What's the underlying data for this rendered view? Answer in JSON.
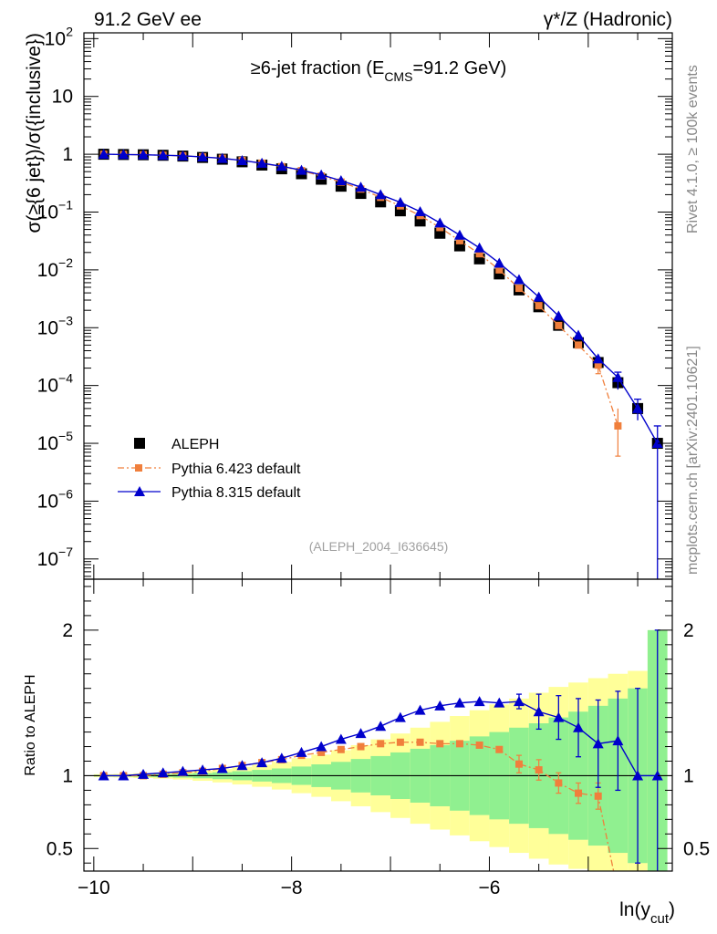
{
  "header": {
    "left": "91.2 GeV ee",
    "right": "γ*/Z (Hadronic)"
  },
  "side_labels": {
    "rivet": "Rivet 4.1.0, ≥ 100k events",
    "mcplots": "mcplots.cern.ch [arXiv:2401.10621]"
  },
  "analysis_id": "(ALEPH_2004_I636645)",
  "chart_data": {
    "type": "scatter",
    "title": "≥6-jet fraction (E_CMS=91.2 GeV)",
    "title_main": "≥6-jet fraction (E",
    "title_sub": "CMS",
    "title_tail": "=91.2 GeV)",
    "ylabel": "σ(≥{6 jet})/σ({inclusive})",
    "ratio_ylabel": "Ratio to ALEPH",
    "xlabel_main": "ln(y",
    "xlabel_sub": "cut",
    "xlabel_tail": ")",
    "xlim": [
      -10.1,
      -4.15
    ],
    "ylim_log10": [
      -7.35,
      2.1
    ],
    "ratio_ylim": [
      0.345,
      2.35
    ],
    "x_ticks": [
      -10,
      -8,
      -6
    ],
    "x_tick_labels": [
      "−10",
      "−8",
      "−6"
    ],
    "y_ticks_log10": [
      -7,
      -6,
      -5,
      -4,
      -3,
      -2,
      -1,
      0,
      1,
      2
    ],
    "y_tick_labels": [
      {
        "base": "10",
        "exp": "−7"
      },
      {
        "base": "10",
        "exp": "−6"
      },
      {
        "base": "10",
        "exp": "−5"
      },
      {
        "base": "10",
        "exp": "−4"
      },
      {
        "base": "10",
        "exp": "−3"
      },
      {
        "base": "10",
        "exp": "−2"
      },
      {
        "base": "10",
        "exp": "−1"
      },
      {
        "base": "1",
        "exp": ""
      },
      {
        "base": "10",
        "exp": ""
      },
      {
        "base": "10",
        "exp": "2"
      }
    ],
    "ratio_ticks": [
      0.5,
      1,
      2
    ],
    "ratio_tick_labels": [
      "0.5",
      "1",
      "2"
    ],
    "legend_position": "bottom-left",
    "legend": [
      "ALEPH",
      "Pythia 6.423 default",
      "Pythia 8.315 default"
    ],
    "colors": {
      "data": "#000000",
      "py6": "#f07f3c",
      "py8": "#0000cc",
      "band_inner": "#90f090",
      "band_outer": "#ffff99"
    },
    "x": [
      -9.9,
      -9.7,
      -9.5,
      -9.3,
      -9.1,
      -8.9,
      -8.7,
      -8.5,
      -8.3,
      -8.1,
      -7.9,
      -7.7,
      -7.5,
      -7.3,
      -7.1,
      -6.9,
      -6.7,
      -6.5,
      -6.3,
      -6.1,
      -5.9,
      -5.7,
      -5.5,
      -5.3,
      -5.1,
      -4.9,
      -4.7,
      -4.5,
      -4.3
    ],
    "series": [
      {
        "name": "ALEPH",
        "values": [
          1.0,
          0.99,
          0.98,
          0.96,
          0.93,
          0.88,
          0.82,
          0.74,
          0.65,
          0.56,
          0.46,
          0.37,
          0.28,
          0.21,
          0.15,
          0.105,
          0.07,
          0.043,
          0.026,
          0.0155,
          0.0085,
          0.0045,
          0.0023,
          0.0011,
          0.00055,
          0.00025,
          0.000112,
          4e-05,
          1e-05
        ]
      },
      {
        "name": "Pythia 6.423 default",
        "values": [
          1.0,
          0.99,
          0.98,
          0.96,
          0.94,
          0.9,
          0.85,
          0.78,
          0.7,
          0.61,
          0.52,
          0.42,
          0.33,
          0.25,
          0.18,
          0.128,
          0.087,
          0.054,
          0.032,
          0.019,
          0.01,
          0.0048,
          0.0024,
          0.00109,
          0.0005,
          0.000225,
          2e-05
        ]
      },
      {
        "name": "Pythia 8.315 default",
        "values": [
          1.0,
          0.99,
          0.98,
          0.96,
          0.94,
          0.9,
          0.85,
          0.78,
          0.7,
          0.62,
          0.53,
          0.44,
          0.35,
          0.27,
          0.2,
          0.147,
          0.102,
          0.065,
          0.04,
          0.024,
          0.0131,
          0.0068,
          0.0034,
          0.0016,
          0.00074,
          0.00029,
          0.000138,
          4e-05,
          1e-05
        ]
      }
    ],
    "ratio_series": [
      {
        "name": "Pythia 6.423 default",
        "values": [
          1.0,
          1.0,
          1.0,
          1.01,
          1.02,
          1.03,
          1.05,
          1.07,
          1.09,
          1.11,
          1.14,
          1.16,
          1.18,
          1.2,
          1.22,
          1.23,
          1.23,
          1.22,
          1.22,
          1.21,
          1.18,
          1.08,
          1.04,
          0.95,
          0.88,
          0.86,
          0.2
        ]
      },
      {
        "name": "Pythia 8.315 default",
        "values": [
          1.0,
          1.0,
          1.01,
          1.02,
          1.03,
          1.04,
          1.05,
          1.07,
          1.09,
          1.12,
          1.16,
          1.2,
          1.25,
          1.29,
          1.34,
          1.4,
          1.45,
          1.48,
          1.5,
          1.51,
          1.5,
          1.51,
          1.44,
          1.4,
          1.33,
          1.22,
          1.24,
          1.0,
          1.0
        ]
      }
    ],
    "ratio_errors": {
      "py6": [
        0,
        0,
        0,
        0,
        0,
        0,
        0,
        0,
        0,
        0,
        0,
        0,
        0,
        0,
        0,
        0,
        0,
        0,
        0,
        0,
        0,
        0.06,
        0.07,
        0.07,
        0.07,
        0.09,
        0
      ],
      "py8": [
        0,
        0,
        0,
        0,
        0,
        0,
        0,
        0,
        0,
        0,
        0,
        0,
        0,
        0,
        0,
        0,
        0,
        0,
        0,
        0,
        0,
        0.05,
        0.12,
        0.15,
        0.2,
        0.3,
        0.34,
        0.6,
        1.0
      ]
    },
    "band_inner_pct": [
      0.5,
      0.6,
      0.8,
      1.0,
      1.3,
      1.8,
      2.4,
      3.1,
      4.0,
      5.0,
      6.3,
      7.8,
      9.5,
      11.5,
      13.5,
      16.0,
      18.5,
      21.0,
      24.0,
      27.0,
      30.0,
      33.0,
      36.0,
      40.0,
      44.0,
      48.0,
      53.0,
      60.0,
      100.0
    ],
    "band_outer_pct": [
      1.0,
      1.2,
      1.6,
      2.0,
      2.6,
      3.5,
      4.6,
      6.0,
      7.6,
      9.5,
      12.0,
      14.5,
      17.5,
      21.0,
      25.0,
      29.0,
      33.0,
      37.0,
      41.0,
      45.0,
      49.0,
      53.0,
      57.0,
      61.0,
      64.0,
      67.0,
      70.0,
      72.0,
      100.0
    ]
  }
}
